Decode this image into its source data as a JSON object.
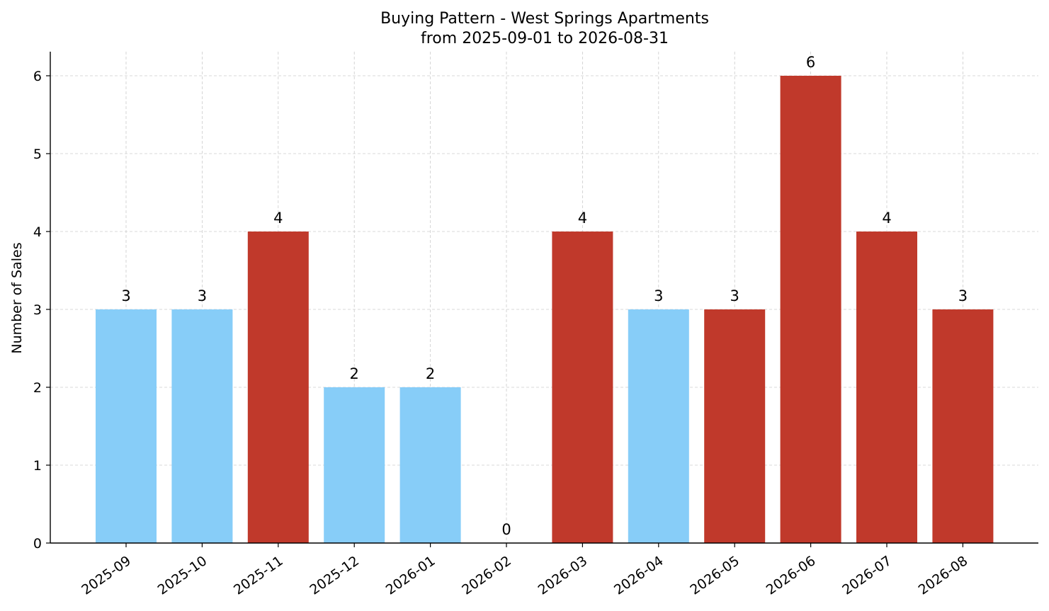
{
  "chart_data": {
    "type": "bar",
    "title": "Buying Pattern - West Springs Apartments",
    "subtitle": "from 2025-09-01 to 2026-08-31",
    "xlabel": "",
    "ylabel": "Number of Sales",
    "categories": [
      "2025-09",
      "2025-10",
      "2025-11",
      "2025-12",
      "2026-01",
      "2026-02",
      "2026-03",
      "2026-04",
      "2026-05",
      "2026-06",
      "2026-07",
      "2026-08"
    ],
    "values": [
      3,
      3,
      4,
      2,
      2,
      0,
      4,
      3,
      3,
      6,
      4,
      3
    ],
    "bar_colors": [
      "#87cdf8",
      "#87cdf8",
      "#c0392b",
      "#87cdf8",
      "#87cdf8",
      "#c0392b",
      "#c0392b",
      "#87cdf8",
      "#c0392b",
      "#c0392b",
      "#c0392b",
      "#c0392b"
    ],
    "ylim": [
      0,
      6.3
    ],
    "yticks": [
      0,
      1,
      2,
      3,
      4,
      5,
      6
    ],
    "grid": true,
    "data_labels": true
  }
}
